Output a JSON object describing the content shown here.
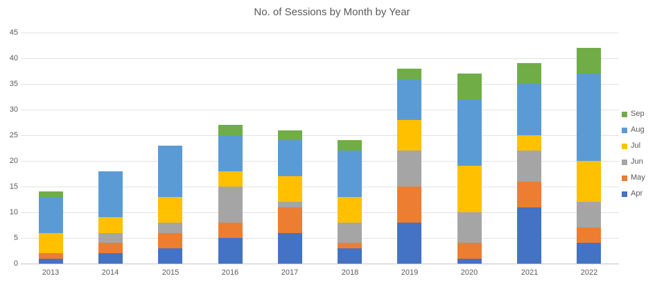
{
  "title": "No. of Sessions by Month by Year",
  "chart_data": {
    "type": "bar",
    "stacked": true,
    "title": "No. of Sessions by Month by Year",
    "xlabel": "",
    "ylabel": "",
    "categories": [
      "2013",
      "2014",
      "2015",
      "2016",
      "2017",
      "2018",
      "2019",
      "2020",
      "2021",
      "2022"
    ],
    "series": [
      {
        "name": "Apr",
        "color": "#4472C4",
        "values": [
          1,
          2,
          3,
          5,
          6,
          3,
          8,
          1,
          11,
          4
        ]
      },
      {
        "name": "May",
        "color": "#ED7D31",
        "values": [
          1,
          2,
          3,
          3,
          5,
          1,
          7,
          3,
          5,
          3
        ]
      },
      {
        "name": "Jun",
        "color": "#A5A5A5",
        "values": [
          0,
          2,
          2,
          7,
          1,
          4,
          7,
          6,
          6,
          5
        ]
      },
      {
        "name": "Jul",
        "color": "#FFC000",
        "values": [
          4,
          3,
          5,
          3,
          5,
          5,
          6,
          9,
          3,
          8
        ]
      },
      {
        "name": "Aug",
        "color": "#5B9BD5",
        "values": [
          7,
          9,
          10,
          7,
          7,
          9,
          8,
          13,
          10,
          17
        ]
      },
      {
        "name": "Sep",
        "color": "#70AD47",
        "values": [
          1,
          0,
          0,
          2,
          2,
          2,
          2,
          5,
          4,
          5
        ]
      }
    ],
    "ylim": [
      0,
      45
    ],
    "ytick_step": 5,
    "ytick_labels": [
      "0",
      "5",
      "10",
      "15",
      "20",
      "25",
      "30",
      "35",
      "40",
      "45"
    ],
    "grid": true,
    "legend_position": "right",
    "legend_order": [
      "Sep",
      "Aug",
      "Jul",
      "Jun",
      "May",
      "Apr"
    ],
    "text_color": "#595959",
    "gridline_color": "#e2e2e2",
    "background_color": "#ffffff"
  }
}
